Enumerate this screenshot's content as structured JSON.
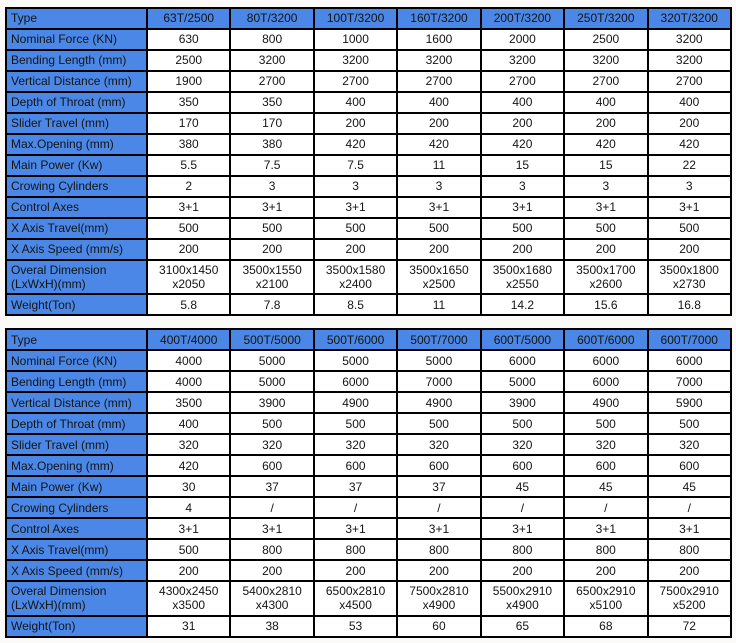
{
  "colors": {
    "header_blue": "#4a87e6",
    "border_black": "#000000",
    "cell_white": "#ffffff",
    "text": "#141414",
    "page_background": "#fbfaf8"
  },
  "tables": [
    {
      "header_label": "Type",
      "columns": [
        "63T/2500",
        "80T/3200",
        "100T/3200",
        "160T/3200",
        "200T/3200",
        "250T/3200",
        "320T/3200"
      ],
      "rows": [
        {
          "label": "Nominal Force (KN)",
          "values": [
            "630",
            "800",
            "1000",
            "1600",
            "2000",
            "2500",
            "3200"
          ]
        },
        {
          "label": "Bending Length (mm)",
          "values": [
            "2500",
            "3200",
            "3200",
            "3200",
            "3200",
            "3200",
            "3200"
          ]
        },
        {
          "label": "Vertical Distance (mm)",
          "values": [
            "1900",
            "2700",
            "2700",
            "2700",
            "2700",
            "2700",
            "2700"
          ]
        },
        {
          "label": "Depth of Throat (mm)",
          "values": [
            "350",
            "350",
            "400",
            "400",
            "400",
            "400",
            "400"
          ]
        },
        {
          "label": "Slider Travel (mm)",
          "values": [
            "170",
            "170",
            "200",
            "200",
            "200",
            "200",
            "200"
          ]
        },
        {
          "label": "Max.Opening (mm)",
          "values": [
            "380",
            "380",
            "420",
            "420",
            "420",
            "420",
            "420"
          ]
        },
        {
          "label": "Main Power (Kw)",
          "values": [
            "5.5",
            "7.5",
            "7.5",
            "11",
            "15",
            "15",
            "22"
          ]
        },
        {
          "label": "Crowing Cylinders",
          "values": [
            "2",
            "3",
            "3",
            "3",
            "3",
            "3",
            "3"
          ]
        },
        {
          "label": "Control Axes",
          "values": [
            "3+1",
            "3+1",
            "3+1",
            "3+1",
            "3+1",
            "3+1",
            "3+1"
          ]
        },
        {
          "label": "X Axis Travel(mm)",
          "values": [
            "500",
            "500",
            "500",
            "500",
            "500",
            "500",
            "500"
          ]
        },
        {
          "label": "X Axis Speed (mm/s)",
          "values": [
            "200",
            "200",
            "200",
            "200",
            "200",
            "200",
            "200"
          ]
        },
        {
          "label": "Overal Dimension\n(LxWxH)(mm)",
          "values": [
            "3100x1450\nx2050",
            "3500x1550\nx2100",
            "3500x1580\nx2400",
            "3500x1650\nx2500",
            "3500x1680\nx2550",
            "3500x1700\nx2600",
            "3500x1800\nx2730"
          ]
        },
        {
          "label": "Weight(Ton)",
          "values": [
            "5.8",
            "7.8",
            "8.5",
            "11",
            "14.2",
            "15.6",
            "16.8"
          ]
        }
      ]
    },
    {
      "header_label": "Type",
      "columns": [
        "400T/4000",
        "500T/5000",
        "500T/6000",
        "500T/7000",
        "600T/5000",
        "600T/6000",
        "600T/7000"
      ],
      "rows": [
        {
          "label": "Nominal Force (KN)",
          "values": [
            "4000",
            "5000",
            "5000",
            "5000",
            "6000",
            "6000",
            "6000"
          ]
        },
        {
          "label": "Bending Length (mm)",
          "values": [
            "4000",
            "5000",
            "6000",
            "7000",
            "5000",
            "6000",
            "7000"
          ]
        },
        {
          "label": "Vertical Distance (mm)",
          "values": [
            "3500",
            "3900",
            "4900",
            "4900",
            "3900",
            "4900",
            "5900"
          ]
        },
        {
          "label": "Depth of Throat (mm)",
          "values": [
            "400",
            "500",
            "500",
            "500",
            "500",
            "500",
            "500"
          ]
        },
        {
          "label": "Slider Travel (mm)",
          "values": [
            "320",
            "320",
            "320",
            "320",
            "320",
            "320",
            "320"
          ]
        },
        {
          "label": "Max.Opening (mm)",
          "values": [
            "420",
            "600",
            "600",
            "600",
            "600",
            "600",
            "600"
          ]
        },
        {
          "label": "Main Power (Kw)",
          "values": [
            "30",
            "37",
            "37",
            "37",
            "45",
            "45",
            "45"
          ]
        },
        {
          "label": "Crowing Cylinders",
          "values": [
            "4",
            "/",
            "/",
            "/",
            "/",
            "/",
            "/"
          ]
        },
        {
          "label": "Control Axes",
          "values": [
            "3+1",
            "3+1",
            "3+1",
            "3+1",
            "3+1",
            "3+1",
            "3+1"
          ]
        },
        {
          "label": "X Axis Travel(mm)",
          "values": [
            "500",
            "800",
            "800",
            "800",
            "800",
            "800",
            "800"
          ]
        },
        {
          "label": "X Axis Speed (mm/s)",
          "values": [
            "200",
            "200",
            "200",
            "200",
            "200",
            "200",
            "200"
          ]
        },
        {
          "label": "Overal Dimension\n(LxWxH)(mm)",
          "values": [
            "4300x2450\nx3500",
            "5400x2810\nx4300",
            "6500x2810\nx4500",
            "7500x2810\nx4900",
            "5500x2910\nx4900",
            "6500x2910\nx5100",
            "7500x2910\nx5200"
          ]
        },
        {
          "label": "Weight(Ton)",
          "values": [
            "31",
            "38",
            "53",
            "60",
            "65",
            "68",
            "72"
          ]
        }
      ]
    }
  ]
}
